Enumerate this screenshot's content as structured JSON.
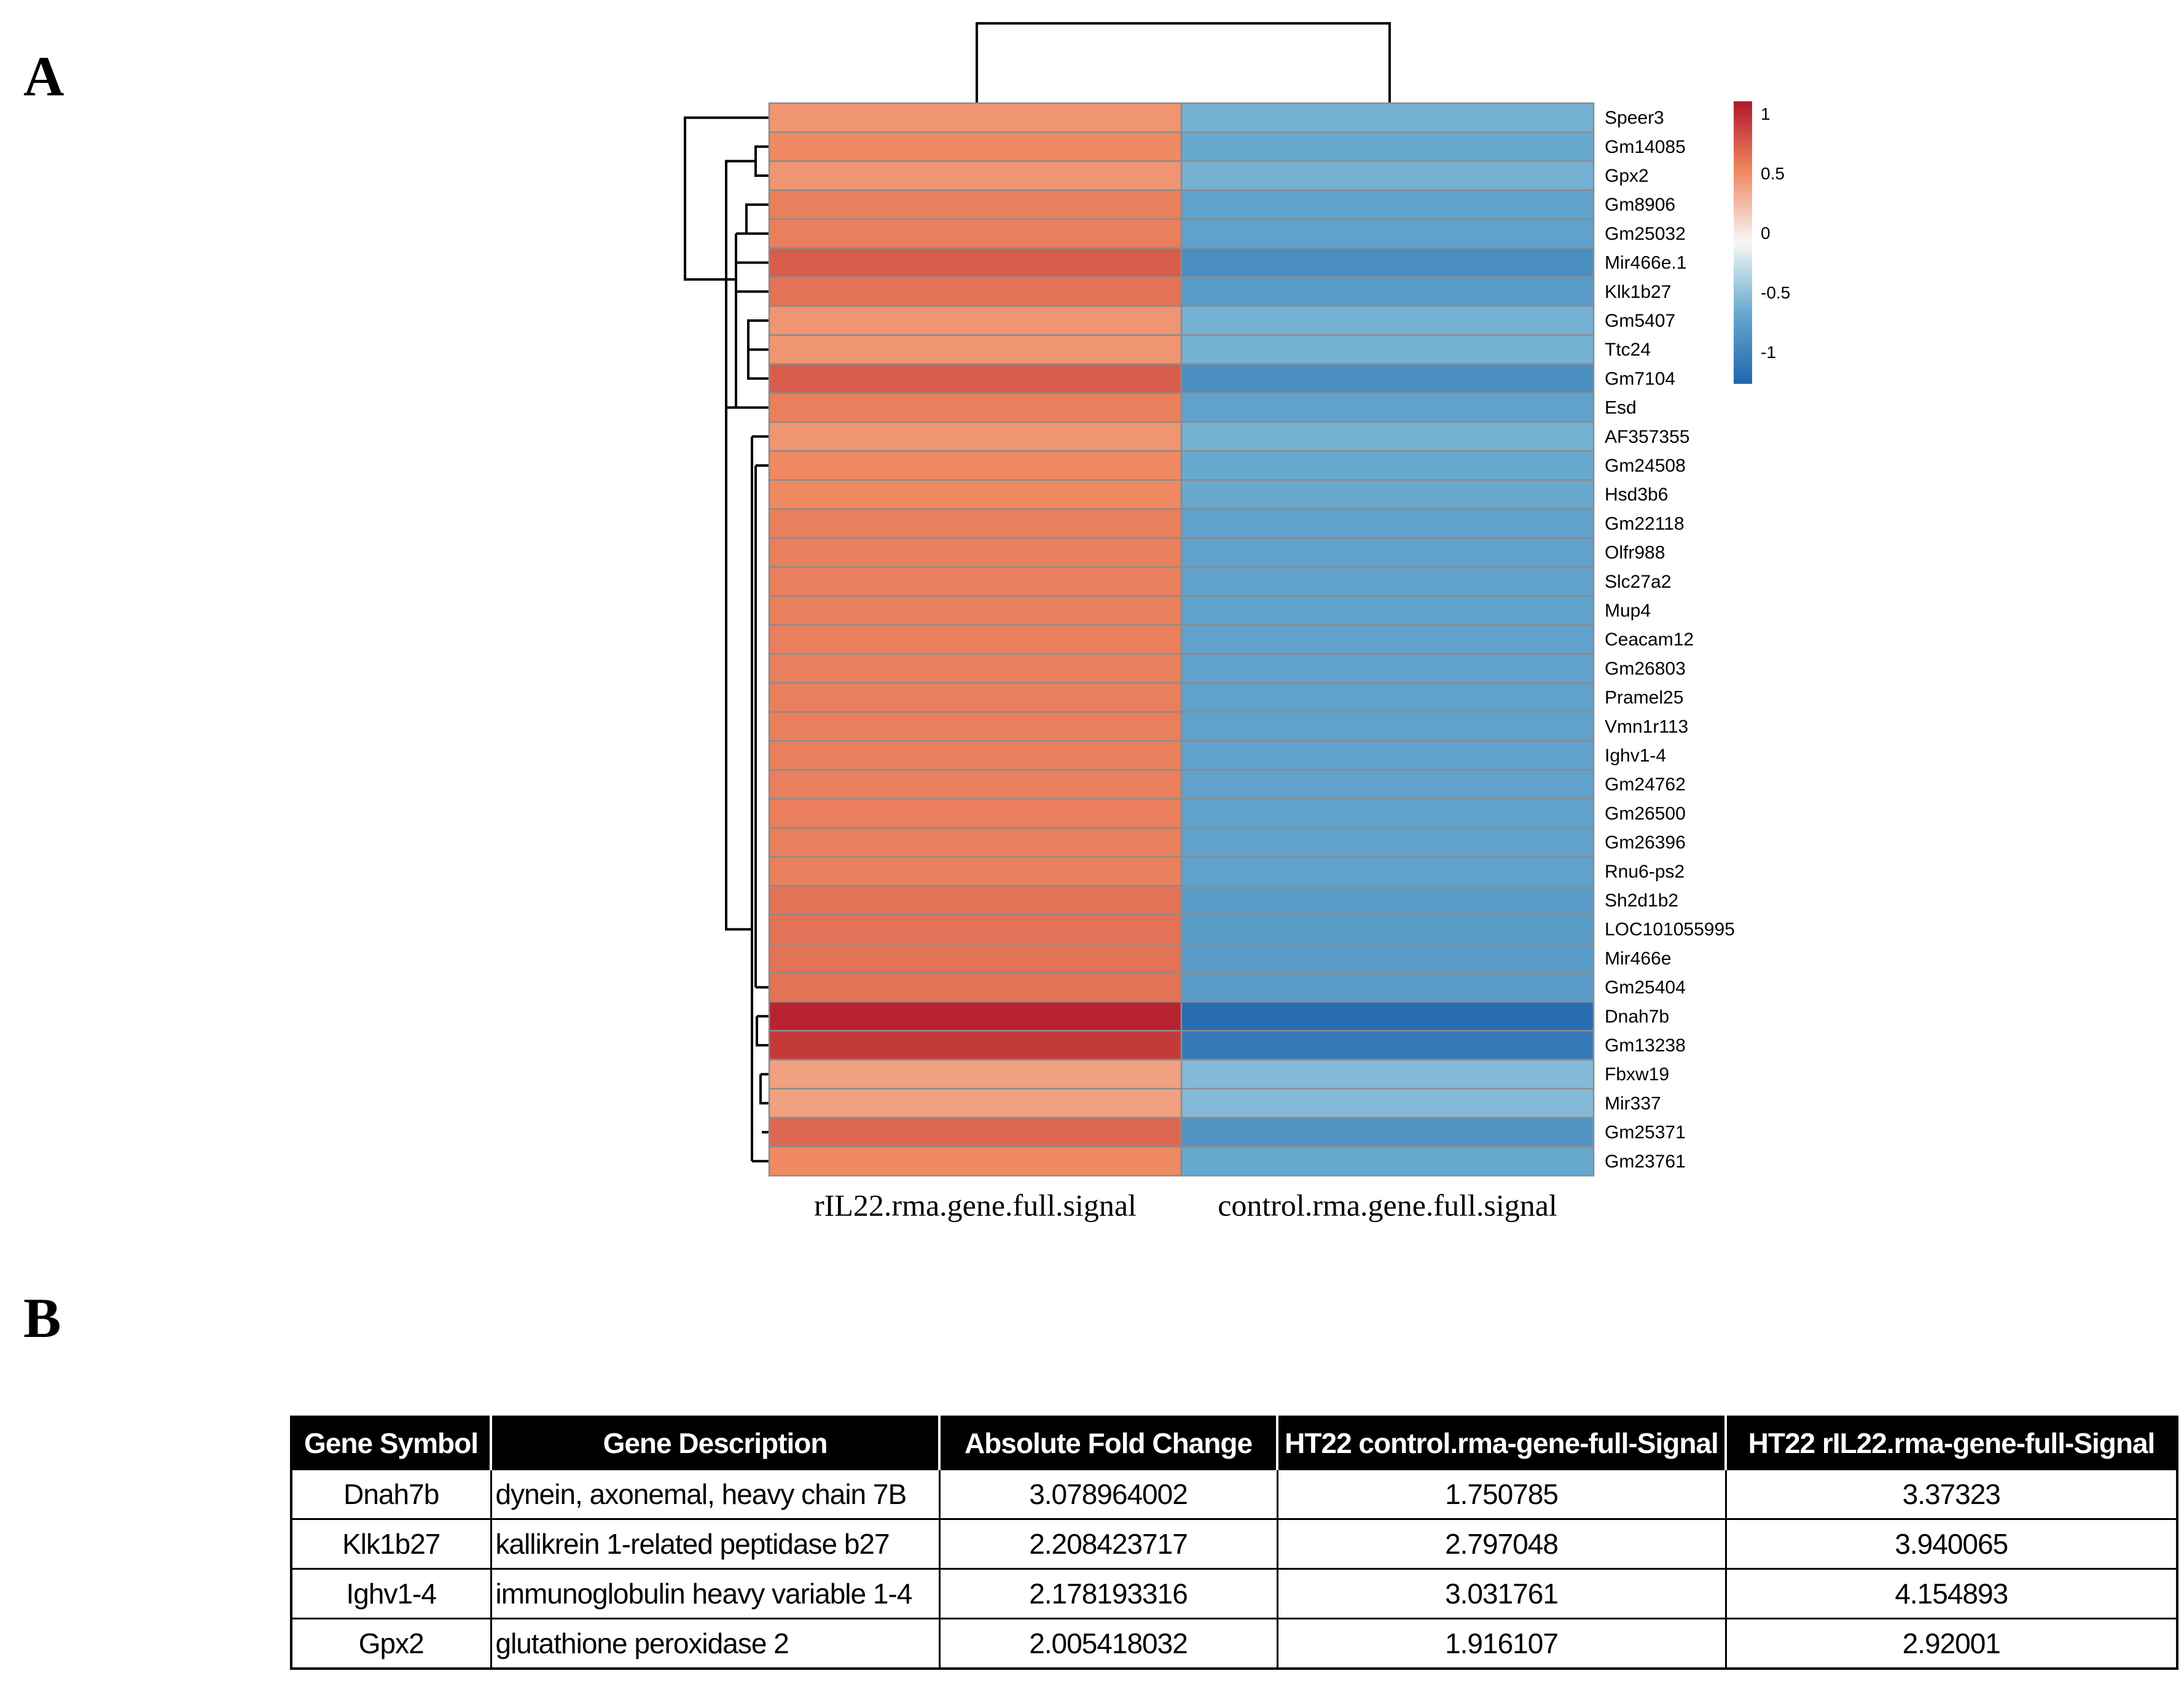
{
  "panels": {
    "a": "A",
    "b": "B"
  },
  "chart_data": {
    "type": "heatmap",
    "columns": [
      "rIL22.rma.gene.full.signal",
      "control.rma.gene.full.signal"
    ],
    "rows": [
      "Speer3",
      "Gm14085",
      "Gpx2",
      "Gm8906",
      "Gm25032",
      "Mir466e.1",
      "Klk1b27",
      "Gm5407",
      "Ttc24",
      "Gm7104",
      "Esd",
      "AF357355",
      "Gm24508",
      "Hsd3b6",
      "Gm22118",
      "Olfr988",
      "Slc27a2",
      "Mup4",
      "Ceacam12",
      "Gm26803",
      "Pramel25",
      "Vmn1r113",
      "Ighv1-4",
      "Gm24762",
      "Gm26500",
      "Gm26396",
      "Rnu6-ps2",
      "Sh2d1b2",
      "LOC101055995",
      "Mir466e",
      "Gm25404",
      "Dnah7b",
      "Gm13238",
      "Fbxw19",
      "Mir337",
      "Gm25371",
      "Gm23761"
    ],
    "values": [
      [
        0.45,
        -0.45
      ],
      [
        0.5,
        -0.5
      ],
      [
        0.45,
        -0.45
      ],
      [
        0.55,
        -0.55
      ],
      [
        0.55,
        -0.55
      ],
      [
        0.7,
        -0.7
      ],
      [
        0.6,
        -0.6
      ],
      [
        0.45,
        -0.45
      ],
      [
        0.45,
        -0.45
      ],
      [
        0.7,
        -0.7
      ],
      [
        0.55,
        -0.55
      ],
      [
        0.45,
        -0.45
      ],
      [
        0.5,
        -0.5
      ],
      [
        0.5,
        -0.5
      ],
      [
        0.55,
        -0.55
      ],
      [
        0.55,
        -0.55
      ],
      [
        0.55,
        -0.55
      ],
      [
        0.55,
        -0.55
      ],
      [
        0.55,
        -0.55
      ],
      [
        0.55,
        -0.55
      ],
      [
        0.55,
        -0.55
      ],
      [
        0.55,
        -0.55
      ],
      [
        0.55,
        -0.55
      ],
      [
        0.55,
        -0.55
      ],
      [
        0.55,
        -0.55
      ],
      [
        0.55,
        -0.55
      ],
      [
        0.55,
        -0.55
      ],
      [
        0.6,
        -0.6
      ],
      [
        0.6,
        -0.6
      ],
      [
        0.6,
        -0.6
      ],
      [
        0.6,
        -0.6
      ],
      [
        0.95,
        -0.95
      ],
      [
        0.85,
        -0.85
      ],
      [
        0.4,
        -0.4
      ],
      [
        0.4,
        -0.4
      ],
      [
        0.65,
        -0.65
      ],
      [
        0.5,
        -0.5
      ]
    ],
    "color_scale": {
      "min": -1,
      "max": 1,
      "ticks": [
        "1",
        "0.5",
        "0",
        "-0.5",
        "-1"
      ],
      "colors": [
        "#2166ac",
        "#67a9cf",
        "#f7f7f7",
        "#ef8a62",
        "#b2182b"
      ]
    },
    "row_dendrogram": true,
    "column_dendrogram": true
  },
  "table": {
    "headers": [
      "Gene Symbol",
      "Gene Description",
      "Absolute Fold Change",
      "HT22 control.rma-gene-full-Signal",
      "HT22 rIL22.rma-gene-full-Signal"
    ],
    "rows": [
      [
        "Dnah7b",
        "dynein, axonemal, heavy chain 7B",
        "3.078964002",
        "1.750785",
        "3.37323"
      ],
      [
        "Klk1b27",
        "kallikrein 1-related peptidase b27",
        "2.208423717",
        "2.797048",
        "3.940065"
      ],
      [
        "Ighv1-4",
        "immunoglobulin heavy variable 1-4",
        "2.178193316",
        "3.031761",
        "4.154893"
      ],
      [
        "Gpx2",
        "glutathione peroxidase 2",
        "2.005418032",
        "1.916107",
        "2.92001"
      ]
    ]
  }
}
